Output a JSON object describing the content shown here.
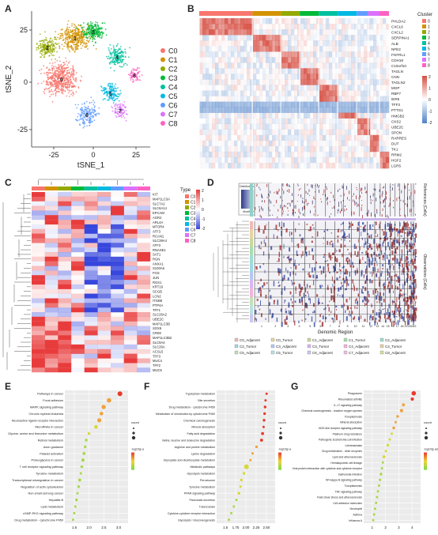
{
  "panels": {
    "A": {
      "letter": "A",
      "xlabel": "tSNE_1",
      "ylabel": "tSNE_2",
      "xticks": [
        "-25",
        "0",
        "25"
      ],
      "yticks": [
        "25",
        "0",
        "-25"
      ],
      "clusters": [
        {
          "name": "C0",
          "color": "#f8766d"
        },
        {
          "name": "C1",
          "color": "#d39200"
        },
        {
          "name": "C2",
          "color": "#93aa00"
        },
        {
          "name": "C3",
          "color": "#00ba38"
        },
        {
          "name": "C4",
          "color": "#00c19f"
        },
        {
          "name": "C5",
          "color": "#00b9e3"
        },
        {
          "name": "C6",
          "color": "#619cff"
        },
        {
          "name": "C7",
          "color": "#db72fb"
        },
        {
          "name": "C8",
          "color": "#ff61c3"
        }
      ]
    },
    "B": {
      "letter": "B",
      "legend_title": "Cluster",
      "genes": [
        "PHLDA2",
        "CXCL6",
        "CXCL2",
        "SERPINA1",
        "ALB",
        "NFE2",
        "FGFRL1",
        "CDH16",
        "C10orf10",
        "TAGLN",
        "CNN",
        "TAGLN2",
        "MGP",
        "RBP7",
        "IER5",
        "TFF3",
        "PTTG1",
        "HMGB2",
        "CKS2",
        "UBE2C",
        "SPON",
        "RARRES",
        "DUT",
        "TK1",
        "RRM2",
        "HGF2",
        "LGR5"
      ],
      "scale_ticks": [
        "2",
        "1",
        "0",
        "-1",
        "-2"
      ]
    },
    "C": {
      "letter": "C",
      "legend_title": "Type",
      "types": [
        "C0",
        "C1",
        "C2",
        "C3",
        "C4",
        "C5",
        "C6",
        "C7",
        "C8"
      ],
      "scale_ticks": [
        "2",
        "1",
        "0",
        "-1",
        "-2"
      ],
      "genes": [
        "KIT",
        "MAP1LC3A",
        "SLC7A2",
        "SLC6A14",
        "EPCAM",
        "AGR2",
        "ARL4A",
        "MTOR4",
        "ATF3",
        "RCAN1",
        "SLC39A4",
        "ATF3",
        "RNASE1",
        "SAT1",
        "RGN",
        "ANXA1",
        "S100A6",
        "FOS",
        "JUN",
        "RGS1",
        "KRT19",
        "SCGB",
        "LCN2",
        "ITGB8",
        "PTP4A",
        "TFF1",
        "SLC26A2",
        "UBE2C",
        "MAP1LC3B",
        "SOX9",
        "CRIM",
        "MAP1LC3B2",
        "SLC9A4",
        "SLC26A",
        "ACSL5",
        "TFF3",
        "MUC4",
        "TFF2",
        "MUC5"
      ]
    },
    "D": {
      "letter": "D",
      "colorkey_title": "Distribution of Expression",
      "colorkey_sub": "Modified Expression",
      "right_label_top": "References (Cells)",
      "right_label_bottom": "Observations (Cells)",
      "xlabel": "Genomic Region",
      "chromosomes": [
        "1",
        "2",
        "3",
        "4",
        "5",
        "6",
        "7",
        "8",
        "9",
        "10",
        "11",
        "12",
        "13",
        "14",
        "15",
        "16",
        "17",
        "18",
        "19",
        "20",
        "21",
        "22"
      ],
      "legend": [
        {
          "label": "C0_Adjacent",
          "color": "#f2b9b4"
        },
        {
          "label": "C0_Tumor",
          "color": "#e6d4a0"
        },
        {
          "label": "C1_Adjacent",
          "color": "#c8d89a"
        },
        {
          "label": "C1_Tumor",
          "color": "#a8dcae"
        },
        {
          "label": "C2_Adjacent",
          "color": "#9fdcd0"
        },
        {
          "label": "C2_Tumor",
          "color": "#9ed7e8"
        },
        {
          "label": "C3_Adjacent",
          "color": "#b4c6f2"
        },
        {
          "label": "C3_Tumor",
          "color": "#d9b4f2"
        },
        {
          "label": "C4_Adjacent",
          "color": "#f2b4dc"
        },
        {
          "label": "C4_Tumor",
          "color": "#e6cfa8"
        },
        {
          "label": "C5_Adjacent",
          "color": "#c2e0b8"
        },
        {
          "label": "C5_Tumor",
          "color": "#b8e0e0"
        },
        {
          "label": "C6_Adjacent",
          "color": "#c8c8f0"
        },
        {
          "label": "C7_Adjacent",
          "color": "#e8c0e0"
        },
        {
          "label": "C8_Adjacent",
          "color": "#d0e0a0"
        }
      ]
    },
    "E": {
      "letter": "E",
      "xticks": [
        "1.6",
        "2.0",
        "2.5",
        "3.0"
      ],
      "size_title": "count",
      "color_title": "-log10(p.adjust)",
      "terms": [
        "Pathways in cancer",
        "Focal adhesion",
        "MAPK signaling pathway",
        "Chronic myeloid leukemia",
        "Neuroactive ligand-receptor interaction",
        "MicroRNAs in cancer",
        "Glycine, serine and threonine metabolism",
        "Retinol metabolism",
        "Axon guidance",
        "Platelet activation",
        "Proteoglycans in cancer",
        "T cell receptor signaling pathway",
        "Tyrosine metabolism",
        "Transcriptional misregulation in cancer",
        "Regulation of actin cytoskeleton",
        "Non-small cell lung cancer",
        "Hepatitis B",
        "Lipid metabolism",
        "cGMP-PKG signaling pathway",
        "Drug metabolism - cytochrome P450"
      ]
    },
    "F": {
      "letter": "F",
      "xticks": [
        "1.5",
        "1.75",
        "2.00",
        "2.25",
        "2.50"
      ],
      "size_title": "count",
      "color_title": "-log10(p.adjust)",
      "terms": [
        "Tryptophan metabolism",
        "Bile secretion",
        "Drug metabolism - cytochrome P450",
        "Metabolism of xenobiotics by cytochrome P450",
        "Chemical carcinogenesis",
        "Mineral absorption",
        "Fatty acid degradation",
        "Valine, leucine and isoleucine degradation",
        "Arginine and proline metabolism",
        "Lysine degradation",
        "Glyoxylate and dicarboxylate metabolism",
        "Metabolic pathways",
        "Glycolysis metabolism",
        "Peroxisome",
        "Tyrosine metabolism",
        "PPAR signaling pathway",
        "Pancreatic secretion",
        "Tuberculosis",
        "Cytokine-cytokine receptor interaction",
        "Glycolysis / Gluconeogenesis"
      ]
    },
    "G": {
      "letter": "G",
      "xticks": [
        "1",
        "2",
        "3",
        "4"
      ],
      "size_title": "count",
      "color_title": "-log10(p.adjust)",
      "terms": [
        "Phagosome",
        "Rheumatoid arthritis",
        "IL-17 signaling pathway",
        "Chemical carcinogenesis - reactive oxygen species",
        "Toxoplasmosis",
        "Mineral absorption",
        "NOD-like receptor signaling pathway",
        "Platinum drug resistance",
        "Pathogenic Escherichia coli infection",
        "Leishmaniasis",
        "Drug metabolism - other enzymes",
        "Lipid and atherosclerosis",
        "Hematopoietic cell lineage",
        "Viral protein interaction with cytokine and cytokine receptor",
        "Salmonella infection",
        "NF-kappa B signaling pathway",
        "Toxoplasmosis",
        "TNF signaling pathway",
        "Fluid shear stress and atherosclerosis",
        "Cell adhesion molecules",
        "Neutrophil",
        "Asthma",
        "Influenza A"
      ]
    }
  }
}
